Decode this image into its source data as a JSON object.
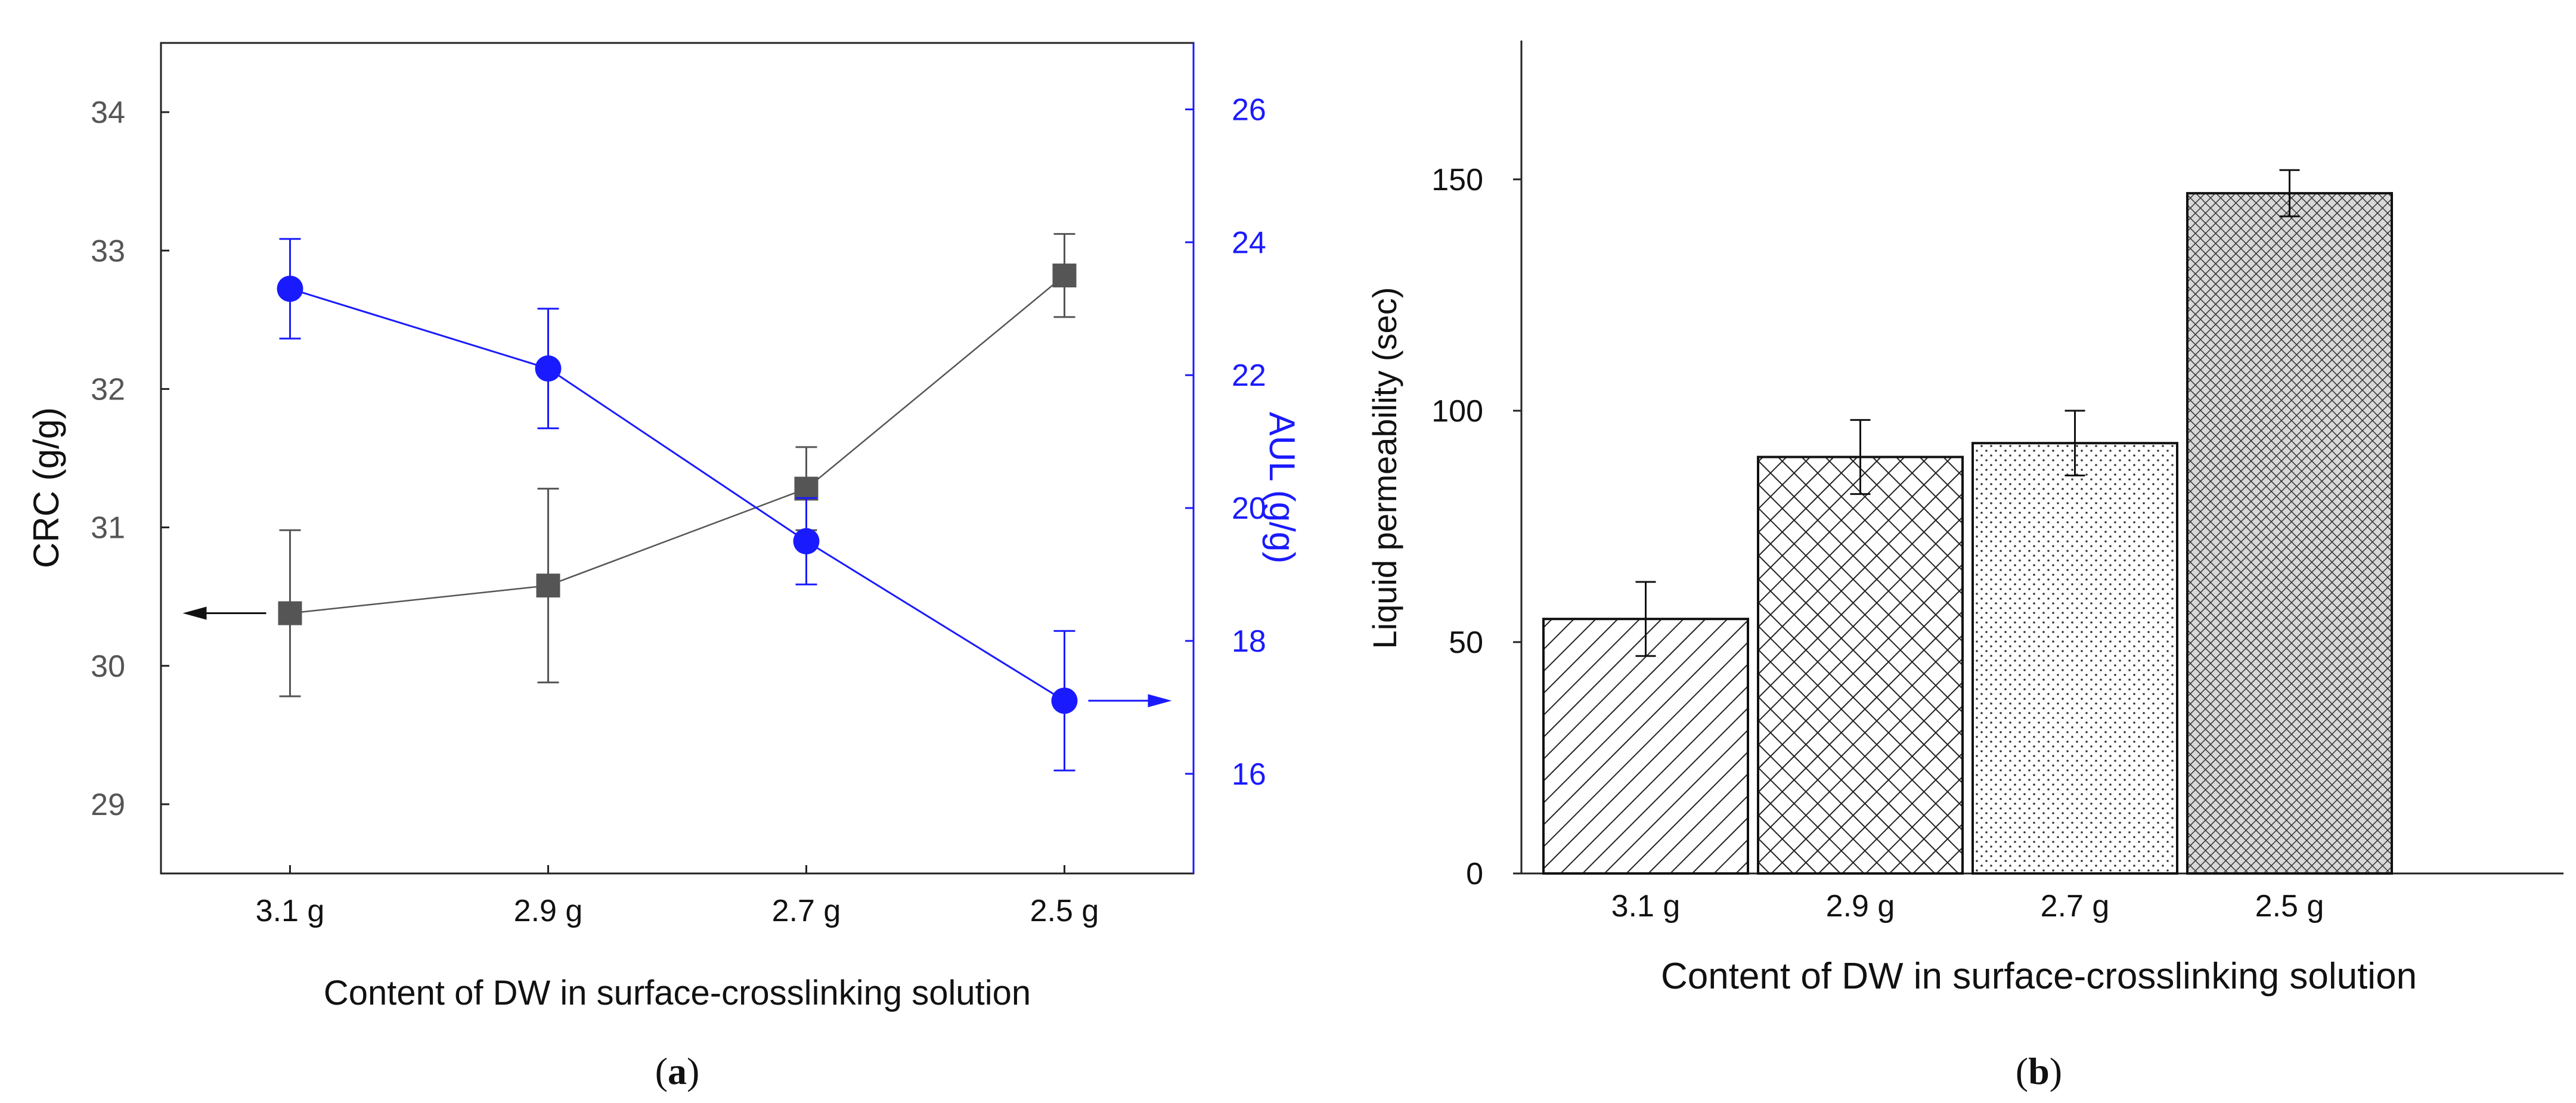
{
  "chart_data": [
    {
      "id": "a",
      "type": "line",
      "panel_label": "a",
      "xlabel": "Content of DW in surface-crosslinking solution",
      "categories": [
        "3.1 g",
        "2.9 g",
        "2.7 g",
        "2.5 g"
      ],
      "left_axis": {
        "label": "CRC (g/g)",
        "ylim": [
          28.5,
          34.5
        ],
        "ticks": [
          29,
          30,
          31,
          32,
          33,
          34
        ],
        "color": "#555555"
      },
      "right_axis": {
        "label": "AUL (g/g)",
        "ylim": [
          14.5,
          27
        ],
        "ticks": [
          16,
          18,
          20,
          22,
          24,
          26
        ],
        "color": "#1a1aff"
      },
      "series": [
        {
          "name": "CRC",
          "axis": "left",
          "marker": "square",
          "color": "#555555",
          "values": [
            30.38,
            30.58,
            31.28,
            32.82
          ],
          "errors": [
            0.6,
            0.7,
            0.3,
            0.3
          ]
        },
        {
          "name": "AUL",
          "axis": "right",
          "marker": "circle",
          "color": "#1a1aff",
          "values": [
            23.3,
            22.1,
            19.5,
            17.1
          ],
          "errors": [
            0.75,
            0.9,
            0.65,
            1.05
          ]
        }
      ]
    },
    {
      "id": "b",
      "type": "bar",
      "panel_label": "b",
      "xlabel": "Content of DW in surface-crosslinking solution",
      "ylabel": "Liquid permeability (sec)",
      "categories": [
        "3.1 g",
        "2.9 g",
        "2.7 g",
        "2.5 g"
      ],
      "ylim": [
        0,
        180
      ],
      "ticks": [
        0,
        50,
        100,
        150
      ],
      "values": [
        55,
        90,
        93,
        147
      ],
      "errors": [
        8,
        8,
        7,
        5
      ],
      "patterns": [
        "diagonal",
        "crosshatch",
        "dots",
        "dense-crosshatch"
      ]
    }
  ]
}
